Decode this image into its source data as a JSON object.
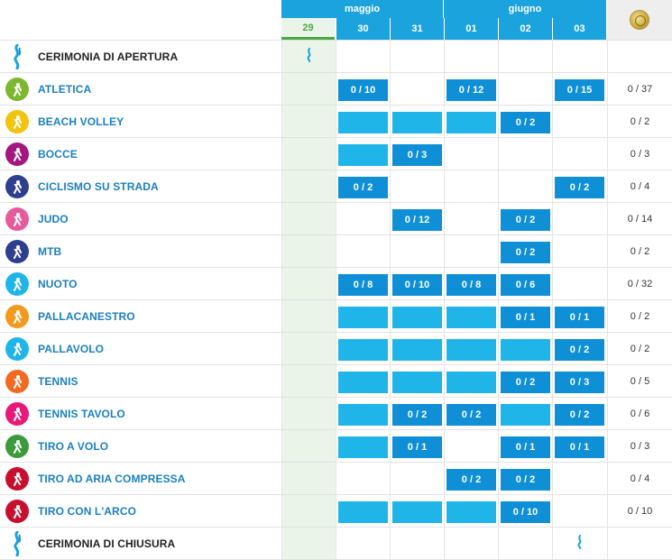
{
  "header": {
    "months": [
      {
        "label": "maggio"
      },
      {
        "label": "giugno"
      }
    ],
    "days": [
      "29",
      "30",
      "31",
      "01",
      "02",
      "03"
    ],
    "medal_icon": "medal-icon"
  },
  "rows": [
    {
      "name": "CERIMONIA DI APERTURA",
      "icon": "flame-icon",
      "color": "",
      "ceremony": true,
      "cells": [
        "flame",
        "",
        "",
        "",
        "",
        ""
      ],
      "total": ""
    },
    {
      "name": "ATLETICA",
      "icon": "athletics-icon",
      "color": "#7cb82f",
      "cells": [
        "",
        "0 / 10",
        "",
        "0 / 12",
        "",
        "0 / 15"
      ],
      "total": "0 / 37"
    },
    {
      "name": "BEACH VOLLEY",
      "icon": "beach-volley-icon",
      "color": "#f2c40d",
      "cells": [
        "",
        "bar",
        "bar",
        "bar",
        "0 / 2",
        ""
      ],
      "total": "0 / 2"
    },
    {
      "name": "BOCCE",
      "icon": "bocce-icon",
      "color": "#a3177f",
      "cells": [
        "",
        "bar",
        "0 / 3",
        "",
        "",
        ""
      ],
      "total": "0 / 3"
    },
    {
      "name": "CICLISMO SU STRADA",
      "icon": "cycling-icon",
      "color": "#2f3f8f",
      "cells": [
        "",
        "0 / 2",
        "",
        "",
        "",
        "0 / 2"
      ],
      "total": "0 / 4"
    },
    {
      "name": "JUDO",
      "icon": "judo-icon",
      "color": "#e55b9c",
      "cells": [
        "",
        "",
        "0 / 12",
        "",
        "0 / 2",
        ""
      ],
      "total": "0 / 14"
    },
    {
      "name": "MTB",
      "icon": "mtb-icon",
      "color": "#2f3f8f",
      "cells": [
        "",
        "",
        "",
        "",
        "0 / 2",
        ""
      ],
      "total": "0 / 2"
    },
    {
      "name": "NUOTO",
      "icon": "swimming-icon",
      "color": "#1fb5e8",
      "cells": [
        "",
        "0 / 8",
        "0 / 10",
        "0 / 8",
        "0 / 6",
        ""
      ],
      "total": "0 / 32"
    },
    {
      "name": "PALLACANESTRO",
      "icon": "basketball-icon",
      "color": "#f39a1e",
      "cells": [
        "",
        "bar",
        "bar",
        "bar",
        "0 / 1",
        "0 / 1"
      ],
      "total": "0 / 2"
    },
    {
      "name": "PALLAVOLO",
      "icon": "volleyball-icon",
      "color": "#1fb5e8",
      "cells": [
        "",
        "bar",
        "bar",
        "bar",
        "bar",
        "0 / 2"
      ],
      "total": "0 / 2"
    },
    {
      "name": "TENNIS",
      "icon": "tennis-icon",
      "color": "#f26a21",
      "cells": [
        "",
        "bar",
        "bar",
        "bar",
        "0 / 2",
        "0 / 3"
      ],
      "total": "0 / 5"
    },
    {
      "name": "TENNIS TAVOLO",
      "icon": "table-tennis-icon",
      "color": "#e8197a",
      "cells": [
        "",
        "bar",
        "0 / 2",
        "0 / 2",
        "bar",
        "0 / 2"
      ],
      "total": "0 / 6"
    },
    {
      "name": "TIRO A VOLO",
      "icon": "clay-shooting-icon",
      "color": "#3c9a3c",
      "cells": [
        "",
        "bar",
        "0 / 1",
        "",
        "0 / 1",
        "0 / 1"
      ],
      "total": "0 / 3"
    },
    {
      "name": "TIRO AD ARIA COMPRESSA",
      "icon": "air-shooting-icon",
      "color": "#c8102e",
      "cells": [
        "",
        "",
        "",
        "0 / 2",
        "0 / 2",
        ""
      ],
      "total": "0 / 4"
    },
    {
      "name": "TIRO CON L'ARCO",
      "icon": "archery-icon",
      "color": "#c8102e",
      "cells": [
        "",
        "bar",
        "bar",
        "bar",
        "0 / 10",
        ""
      ],
      "total": "0 / 10"
    },
    {
      "name": "CERIMONIA DI CHIUSURA",
      "icon": "flame-icon",
      "color": "",
      "ceremony": true,
      "cells": [
        "",
        "",
        "",
        "",
        "",
        "flame"
      ],
      "total": ""
    }
  ]
}
